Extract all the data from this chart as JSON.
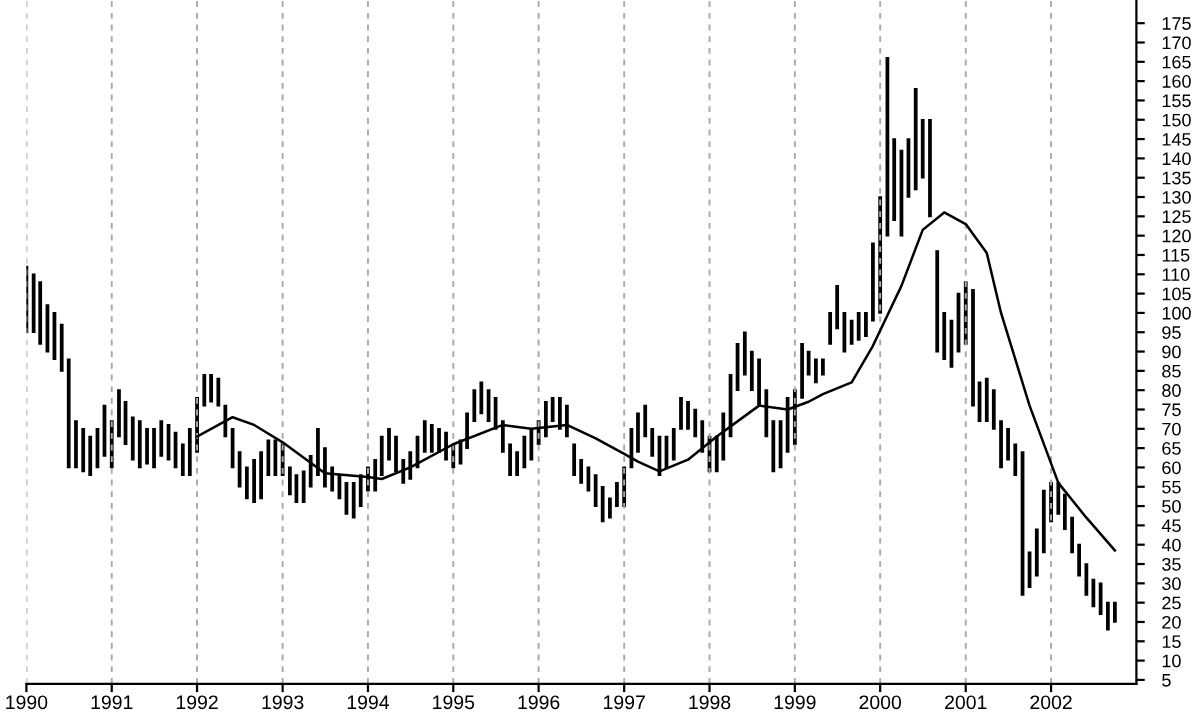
{
  "chart_data": {
    "type": "bar",
    "grid": "x",
    "xlim": [
      "1990-01-01",
      "2003-01-01"
    ],
    "xticks": [
      "1990",
      "1991",
      "1992",
      "1993",
      "1994",
      "1995",
      "1996",
      "1997",
      "1998",
      "1999",
      "2000",
      "2001",
      "2002"
    ],
    "ylim": [
      4,
      181
    ],
    "yticks": [
      5,
      10,
      15,
      20,
      25,
      30,
      35,
      40,
      45,
      50,
      55,
      60,
      65,
      70,
      75,
      80,
      85,
      90,
      95,
      100,
      105,
      110,
      115,
      120,
      125,
      130,
      135,
      140,
      145,
      150,
      155,
      160,
      165,
      170,
      175
    ],
    "series": [
      {
        "color": "#000000",
        "x": [
          "1990-01",
          "1990-02",
          "1990-03",
          "1990-04",
          "1990-05",
          "1990-06",
          "1990-07",
          "1990-08",
          "1990-09",
          "1990-10",
          "1990-11",
          "1990-12",
          "1991-01",
          "1991-02",
          "1991-03",
          "1991-04",
          "1991-05",
          "1991-06",
          "1991-07",
          "1991-08",
          "1991-09",
          "1991-10",
          "1991-11",
          "1991-12",
          "1992-01",
          "1992-02",
          "1992-03",
          "1992-04",
          "1992-05",
          "1992-06",
          "1992-07",
          "1992-08",
          "1992-09",
          "1992-10",
          "1992-11",
          "1992-12",
          "1993-01",
          "1993-02",
          "1993-03",
          "1993-04",
          "1993-05",
          "1993-06",
          "1993-07",
          "1993-08",
          "1993-09",
          "1993-10",
          "1993-11",
          "1993-12",
          "1994-01",
          "1994-02",
          "1994-03",
          "1994-04",
          "1994-05",
          "1994-06",
          "1994-07",
          "1994-08",
          "1994-09",
          "1994-10",
          "1994-11",
          "1994-12",
          "1995-01",
          "1995-02",
          "1995-03",
          "1995-04",
          "1995-05",
          "1995-06",
          "1995-07",
          "1995-08",
          "1995-09",
          "1995-10",
          "1995-11",
          "1995-12",
          "1996-01",
          "1996-02",
          "1996-03",
          "1996-04",
          "1996-05",
          "1996-06",
          "1996-07",
          "1996-08",
          "1996-09",
          "1996-10",
          "1996-11",
          "1996-12",
          "1997-01",
          "1997-02",
          "1997-03",
          "1997-04",
          "1997-05",
          "1997-06",
          "1997-07",
          "1997-08",
          "1997-09",
          "1997-10",
          "1997-11",
          "1997-12",
          "1998-01",
          "1998-02",
          "1998-03",
          "1998-04",
          "1998-05",
          "1998-06",
          "1998-07",
          "1998-08",
          "1998-09",
          "1998-10",
          "1998-11",
          "1998-12",
          "1999-01",
          "1999-02",
          "1999-03",
          "1999-04",
          "1999-05",
          "1999-06",
          "1999-07",
          "1999-08",
          "1999-09",
          "1999-10",
          "1999-11",
          "1999-12",
          "2000-01",
          "2000-02",
          "2000-03",
          "2000-04",
          "2000-05",
          "2000-06",
          "2000-07",
          "2000-08",
          "2000-09",
          "2000-10",
          "2000-11",
          "2000-12",
          "2001-01",
          "2001-02",
          "2001-03",
          "2001-04",
          "2001-05",
          "2001-06",
          "2001-07",
          "2001-08",
          "2001-09",
          "2001-10",
          "2001-11",
          "2001-12",
          "2002-01",
          "2002-02",
          "2002-03",
          "2002-04",
          "2002-05",
          "2002-06",
          "2002-07",
          "2002-08",
          "2002-09",
          "2002-10"
        ],
        "base": [
          95,
          95,
          92,
          90,
          88,
          85,
          60,
          60,
          59,
          58,
          60,
          63,
          60,
          68,
          66,
          62,
          60,
          61,
          60,
          63,
          62,
          60,
          58,
          58,
          64,
          76,
          77,
          76,
          68,
          60,
          55,
          52,
          51,
          52,
          58,
          58,
          58,
          53,
          51,
          51,
          55,
          58,
          55,
          54,
          52,
          48,
          47,
          50,
          54,
          54,
          58,
          62,
          59,
          56,
          57,
          60,
          64,
          64,
          64,
          62,
          60,
          61,
          65,
          72,
          74,
          72,
          70,
          64,
          58,
          58,
          60,
          62,
          66,
          68,
          72,
          70,
          68,
          58,
          56,
          54,
          50,
          46,
          47,
          50,
          50,
          60,
          64,
          68,
          63,
          58,
          60,
          62,
          70,
          70,
          68,
          64,
          59,
          59,
          62,
          68,
          80,
          84,
          80,
          76,
          68,
          59,
          60,
          64,
          66,
          78,
          84,
          82,
          84,
          92,
          96,
          90,
          92,
          93,
          94,
          98,
          100,
          120,
          124,
          120,
          130,
          132,
          135,
          125,
          90,
          88,
          86,
          90,
          92,
          76,
          72,
          72,
          70,
          60,
          62,
          58,
          27,
          29,
          32,
          38,
          46,
          48,
          44,
          38,
          32,
          27,
          24,
          22,
          18,
          20
        ],
        "values": [
          17,
          15,
          16,
          12,
          12,
          12,
          28,
          12,
          11,
          10,
          10,
          13,
          12,
          12,
          11,
          11,
          12,
          9,
          10,
          9,
          9,
          9,
          8,
          12,
          14,
          8,
          7,
          7,
          8,
          10,
          9,
          8,
          11,
          12,
          9,
          9,
          8,
          7,
          7,
          8,
          8,
          12,
          10,
          6,
          6,
          8,
          9,
          8,
          6,
          8,
          10,
          8,
          9,
          6,
          7,
          8,
          8,
          7,
          6,
          7,
          6,
          6,
          9,
          8,
          8,
          8,
          8,
          8,
          8,
          6,
          8,
          8,
          6,
          9,
          6,
          8,
          8,
          8,
          6,
          6,
          8,
          9,
          5,
          6,
          10,
          10,
          10,
          8,
          7,
          10,
          8,
          8,
          8,
          7,
          7,
          8,
          9,
          9,
          12,
          16,
          12,
          11,
          10,
          12,
          12,
          13,
          12,
          14,
          14,
          14,
          6,
          6,
          4,
          8,
          11,
          10,
          6,
          7,
          6,
          20,
          30,
          46,
          21,
          22,
          15,
          26,
          15,
          25,
          26,
          12,
          12,
          15,
          16,
          30,
          10,
          11,
          10,
          12,
          8,
          8,
          37,
          9,
          12,
          16,
          10,
          8,
          9,
          9,
          8,
          8,
          7,
          8,
          7,
          5
        ]
      },
      {
        "type": "line",
        "color": "#000000",
        "x": [
          "1992-01",
          "1992-06",
          "1992-09",
          "1993-01",
          "1993-07",
          "1994-01",
          "1994-03",
          "1994-07",
          "1995-01",
          "1995-08",
          "1995-12",
          "1996-05",
          "1996-09",
          "1997-01",
          "1997-03",
          "1997-06",
          "1997-10",
          "1998-02",
          "1998-08",
          "1998-12",
          "1999-03",
          "1999-05",
          "1999-09",
          "1999-12",
          "2000-04",
          "2000-07",
          "2000-10",
          "2001-01",
          "2001-04",
          "2001-06",
          "2001-10",
          "2002-02",
          "2002-06",
          "2002-10"
        ],
        "values": [
          68,
          73,
          71,
          66.5,
          58.5,
          57.5,
          57,
          60,
          66,
          71,
          70,
          71,
          67.5,
          63.5,
          61.5,
          59,
          62,
          68,
          76,
          75,
          77,
          79,
          82,
          91.5,
          107,
          121.5,
          126,
          123,
          115.5,
          100,
          76,
          56,
          47,
          38.5
        ]
      }
    ]
  }
}
